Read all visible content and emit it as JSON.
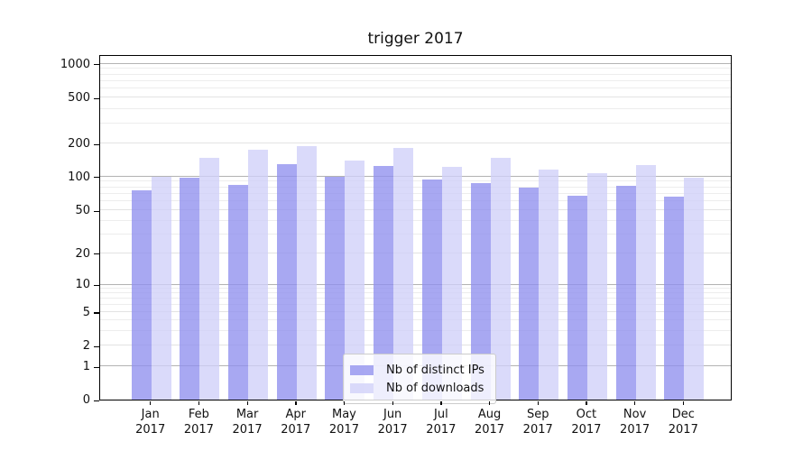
{
  "title": "trigger 2017",
  "chart_data": {
    "type": "bar",
    "title": "trigger 2017",
    "categories": [
      "Jan",
      "Feb",
      "Mar",
      "Apr",
      "May",
      "Jun",
      "Jul",
      "Aug",
      "Sep",
      "Oct",
      "Nov",
      "Dec"
    ],
    "category_year": "2017",
    "series": [
      {
        "name": "Nb of distinct IPs",
        "color": "#8f8fee",
        "alpha": 0.78,
        "values": [
          75,
          97,
          85,
          130,
          100,
          125,
          94,
          88,
          80,
          68,
          82,
          66
        ]
      },
      {
        "name": "Nb of downloads",
        "color": "#cfcff8",
        "alpha": 0.78,
        "values": [
          100,
          148,
          174,
          190,
          139,
          182,
          123,
          147,
          115,
          108,
          127,
          98
        ]
      }
    ],
    "yscale": "symlog",
    "yticks": [
      0,
      1,
      2,
      5,
      10,
      20,
      50,
      100,
      200,
      500,
      1000
    ],
    "ylim": [
      0,
      1250
    ],
    "grid": "both",
    "legend_position": "lower-center-inside",
    "colors": {
      "major_grid": "#b3b3b3",
      "mid_grid": "#e3e3e3",
      "minor_grid": "#ededed",
      "axis": "#000000",
      "text": "#111111"
    }
  }
}
